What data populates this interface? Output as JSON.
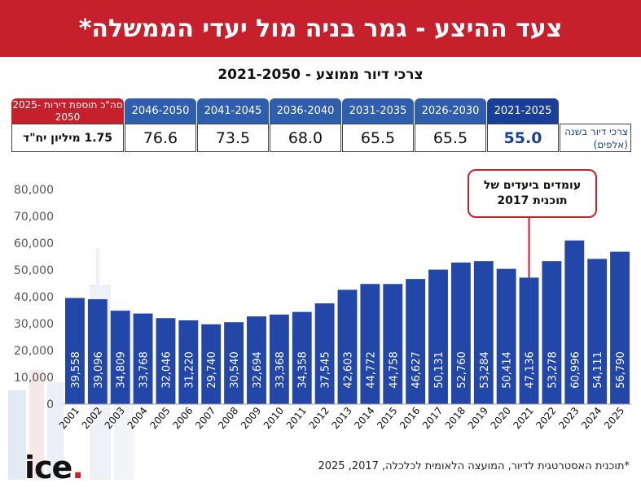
{
  "header": {
    "title": "צעד ההיצע - גמר בניה מול יעדי הממשלה*"
  },
  "subtitle": "צרכי דיור ממוצע - 2021-2050",
  "needs_table": {
    "row_label": "צרכי דיור בשנה (אלפים)",
    "periods": [
      {
        "label": "2021-2025",
        "value": "55.0"
      },
      {
        "label": "2026-2030",
        "value": "65.5"
      },
      {
        "label": "2031-2035",
        "value": "65.5"
      },
      {
        "label": "2036-2040",
        "value": "68.0"
      },
      {
        "label": "2041-2045",
        "value": "73.5"
      },
      {
        "label": "2046-2050",
        "value": "76.6"
      }
    ],
    "total_label": "סה\"כ תוספת דירות 2025-2050",
    "total_value": "1.75 מיליון יח\"ד"
  },
  "callout": {
    "line1": "עומדים ביעדים של",
    "line2": "תוכנית 2017"
  },
  "footnote": "*תוכנית האסטרטגית לדיור, המועצה הלאומית לכלכלה, 2017, 2025",
  "logo": {
    "text": "ice",
    "dot": "."
  },
  "colors": {
    "bar": "#2247a8",
    "header": "#c6202d",
    "callout_border": "#c6202d"
  },
  "chart_data": {
    "type": "bar",
    "categories": [
      "2001",
      "2002",
      "2003",
      "2004",
      "2005",
      "2006",
      "2007",
      "2008",
      "2009",
      "2010",
      "2011",
      "2012",
      "2013",
      "2014",
      "2015",
      "2016",
      "2017",
      "2018",
      "2019",
      "2020",
      "2021",
      "2022",
      "2023",
      "2024",
      "2025"
    ],
    "values": [
      39558,
      39096,
      34809,
      33768,
      32046,
      31220,
      29740,
      30540,
      32694,
      33368,
      34358,
      37545,
      42603,
      44772,
      44758,
      46627,
      50131,
      52760,
      53284,
      50414,
      47136,
      53278,
      60996,
      54111,
      56790
    ],
    "value_labels": [
      "39,558",
      "39,096",
      "34,809",
      "33,768",
      "32,046",
      "31,220",
      "29,740",
      "30,540",
      "32,694",
      "33,368",
      "34,358",
      "37,545",
      "42,603",
      "44,772",
      "44,758",
      "46,627",
      "50,131",
      "52,760",
      "53,284",
      "50,414",
      "47,136",
      "53,278",
      "60,996",
      "54,111",
      "56,790"
    ],
    "y_ticks": [
      "0",
      "10,000",
      "20,000",
      "30,000",
      "40,000",
      "50,000",
      "60,000",
      "70,000",
      "80,000"
    ],
    "ylim": [
      0,
      80000
    ],
    "callout_category": "2021",
    "title": "",
    "xlabel": "",
    "ylabel": ""
  }
}
